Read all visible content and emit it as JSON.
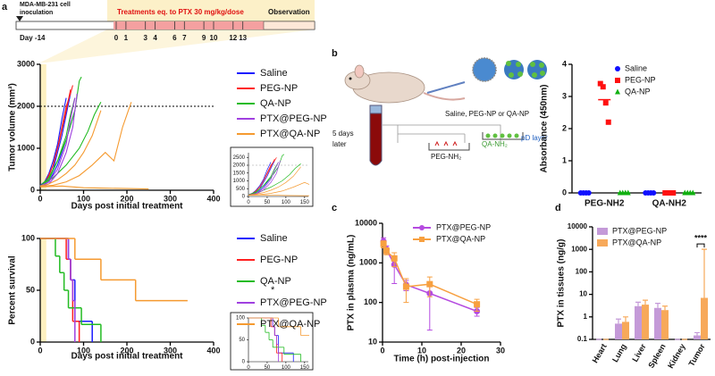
{
  "panel_labels": [
    "a",
    "b",
    "c",
    "d"
  ],
  "timeline": {
    "inoculation": "MDA-MB-231 cell",
    "inoculation_2": "inoculation",
    "treatment": "Treatments eq. to PTX 30 mg/kg/dose",
    "observation": "Observation",
    "start_day": "Day -14",
    "days": [
      0,
      1,
      3,
      4,
      6,
      7,
      9,
      10,
      12,
      13
    ]
  },
  "schematic": {
    "agents": "Saline, PEG-NP or QA-NP",
    "delay_1": "5 days",
    "delay_2": "later",
    "well_1": "PEG-NH₂",
    "well_2": "QA-NH₂",
    "layer": "pD layer"
  },
  "chart_data": [
    {
      "type": "line",
      "xlabel": "Days post initial treatment",
      "ylabel": "Tumor volume (mm³)",
      "legend": "outside right",
      "xlim": [
        0,
        400
      ],
      "ylim": [
        0,
        3000
      ],
      "xticks": [
        0,
        100,
        200,
        300,
        400
      ],
      "yticks": [
        0,
        1000,
        2000,
        3000
      ],
      "reference_line": 2000,
      "treatment_window": [
        0,
        14
      ],
      "series": [
        {
          "name": "Saline",
          "color": "#1a1aff",
          "curves": [
            {
              "x": [
                0,
                10,
                20,
                30,
                40,
                50,
                60,
                70
              ],
              "values": [
                100,
                150,
                300,
                500,
                900,
                1300,
                1800,
                2300
              ]
            },
            {
              "x": [
                0,
                10,
                20,
                30,
                40,
                50,
                60
              ],
              "values": [
                120,
                200,
                400,
                700,
                1100,
                1700,
                2200
              ]
            },
            {
              "x": [
                0,
                20,
                40,
                60,
                80
              ],
              "values": [
                80,
                200,
                600,
                1200,
                1900
              ]
            }
          ]
        },
        {
          "name": "PEG-NP",
          "color": "#ff2020",
          "curves": [
            {
              "x": [
                0,
                10,
                20,
                30,
                40,
                50,
                60,
                70,
                75
              ],
              "values": [
                100,
                180,
                350,
                600,
                1000,
                1500,
                2000,
                2300,
                2500
              ]
            },
            {
              "x": [
                0,
                15,
                30,
                45,
                60,
                70
              ],
              "values": [
                90,
                250,
                600,
                1200,
                1900,
                2400
              ]
            }
          ]
        },
        {
          "name": "QA-NP",
          "color": "#22bb22",
          "curves": [
            {
              "x": [
                0,
                20,
                40,
                60,
                80,
                90,
                95
              ],
              "values": [
                100,
                300,
                700,
                1200,
                1900,
                2600,
                2700
              ]
            },
            {
              "x": [
                0,
                30,
                60,
                90,
                110,
                125,
                140
              ],
              "values": [
                100,
                300,
                600,
                1000,
                1400,
                1800,
                2100
              ]
            },
            {
              "x": [
                0,
                20,
                40,
                60,
                70,
                80
              ],
              "values": [
                100,
                250,
                700,
                1300,
                1800,
                2200
              ]
            }
          ]
        },
        {
          "name": "PTX@PEG-NP",
          "color": "#a040e0",
          "curves": [
            {
              "x": [
                0,
                20,
                40,
                60,
                70,
                80
              ],
              "values": [
                100,
                200,
                500,
                1100,
                1700,
                2200
              ]
            },
            {
              "x": [
                0,
                20,
                40,
                60,
                75,
                85
              ],
              "values": [
                80,
                150,
                400,
                900,
                1500,
                2300
              ]
            }
          ]
        },
        {
          "name": "PTX@QA-NP",
          "color": "#f59a30",
          "curves": [
            {
              "x": [
                0,
                20,
                40,
                60,
                80,
                100,
                120,
                140
              ],
              "values": [
                100,
                150,
                250,
                400,
                600,
                900,
                1300,
                1900
              ]
            },
            {
              "x": [
                0,
                30,
                60,
                90,
                120,
                150,
                170,
                190,
                210
              ],
              "values": [
                90,
                120,
                200,
                350,
                600,
                900,
                700,
                1500,
                2100
              ]
            },
            {
              "x": [
                0,
                50,
                100,
                150,
                200,
                250
              ],
              "values": [
                80,
                100,
                60,
                50,
                40,
                30
              ]
            }
          ]
        }
      ],
      "inset": {
        "xlim": [
          0,
          160
        ],
        "ylim": [
          0,
          2800
        ],
        "xticks": [
          0,
          50,
          100,
          150
        ],
        "yticks": [
          0,
          500,
          1000,
          1500,
          2000,
          2500
        ]
      }
    },
    {
      "type": "step",
      "xlabel": "Days post initial treatment",
      "ylabel": "Percent survival",
      "legend": "outside right",
      "xlim": [
        0,
        400
      ],
      "ylim": [
        0,
        100
      ],
      "xticks": [
        0,
        100,
        200,
        300,
        400
      ],
      "yticks": [
        0,
        50,
        100
      ],
      "treatment_window": [
        0,
        14
      ],
      "annotation": "*",
      "series": [
        {
          "name": "Saline",
          "color": "#1a1aff",
          "x": [
            0,
            65,
            70,
            80,
            120
          ],
          "values": [
            100,
            80,
            60,
            20,
            0
          ]
        },
        {
          "name": "PEG-NP",
          "color": "#ff2020",
          "x": [
            0,
            60,
            70,
            75,
            90
          ],
          "values": [
            100,
            80,
            60,
            20,
            0
          ]
        },
        {
          "name": "QA-NP",
          "color": "#22bb22",
          "x": [
            0,
            35,
            45,
            55,
            65,
            95,
            140
          ],
          "values": [
            100,
            83,
            67,
            50,
            33,
            17,
            0
          ]
        },
        {
          "name": "PTX@PEG-NP",
          "color": "#a040e0",
          "x": [
            0,
            65,
            70,
            75,
            80
          ],
          "values": [
            100,
            80,
            60,
            40,
            0
          ]
        },
        {
          "name": "PTX@QA-NP",
          "color": "#f59a30",
          "x": [
            0,
            80,
            140,
            220,
            340
          ],
          "values": [
            100,
            80,
            60,
            40,
            40
          ]
        }
      ],
      "inset": {
        "xlim": [
          0,
          160
        ],
        "ylim": [
          0,
          100
        ],
        "xticks": [
          0,
          50,
          100,
          150
        ],
        "yticks": [
          0,
          50,
          100
        ]
      }
    },
    {
      "type": "dot",
      "ylabel": "Absorbance (450nm)",
      "legend": "upper right",
      "ylim": [
        0,
        4
      ],
      "yticks": [
        0,
        1,
        2,
        3,
        4
      ],
      "categories": [
        "PEG-NH2",
        "QA-NH2"
      ],
      "series": [
        {
          "name": "Saline",
          "color": "#1010ff",
          "marker": "circle",
          "values": [
            [
              0,
              0,
              0,
              0
            ],
            [
              0,
              0,
              0,
              0
            ]
          ],
          "means": [
            0,
            0
          ]
        },
        {
          "name": "PEG-NP",
          "color": "#ff1010",
          "marker": "square",
          "values": [
            [
              3.4,
              3.3,
              2.8,
              2.2
            ],
            [
              0,
              0,
              0,
              0
            ]
          ],
          "means": [
            2.9,
            0
          ]
        },
        {
          "name": "QA-NP",
          "color": "#10b010",
          "marker": "triangle",
          "values": [
            [
              0,
              0,
              0,
              0
            ],
            [
              0,
              0,
              0,
              0
            ]
          ],
          "means": [
            0,
            0
          ]
        }
      ]
    },
    {
      "type": "line",
      "log": true,
      "xlabel": "Time (h) post-injection",
      "ylabel": "PTX in plasma (ng/mL)",
      "legend": "upper right",
      "x": [
        0.25,
        1,
        3,
        6,
        12,
        24
      ],
      "xlim": [
        0,
        30
      ],
      "ylim": [
        10,
        10000
      ],
      "xticks": [
        0,
        10,
        20,
        30
      ],
      "yticks": [
        10,
        100,
        1000,
        10000
      ],
      "series": [
        {
          "name": "PTX@PEG-NP",
          "color": "#b54be0",
          "marker": "circle",
          "values": [
            3500,
            2200,
            900,
            280,
            170,
            60
          ],
          "errors": [
            800,
            500,
            600,
            80,
            150,
            15
          ]
        },
        {
          "name": "PTX@QA-NP",
          "color": "#f7a040",
          "marker": "square",
          "values": [
            3000,
            2000,
            1300,
            250,
            290,
            90
          ],
          "errors": [
            600,
            400,
            500,
            150,
            150,
            30
          ]
        }
      ]
    },
    {
      "type": "bar",
      "log": true,
      "ylabel": "PTX in tissues (ng/g)",
      "legend": "upper left",
      "annotation": "****",
      "categories": [
        "Heart",
        "Lung",
        "Liver",
        "Spleen",
        "Kidney",
        "Tumor"
      ],
      "ylim": [
        0.1,
        10000
      ],
      "yticks": [
        0.1,
        1,
        10,
        100,
        1000,
        10000
      ],
      "series": [
        {
          "name": "PTX@PEG-NP",
          "color": "#c49ad8",
          "values": [
            0.1,
            0.5,
            3,
            2.5,
            0.1,
            0.15
          ],
          "errors": [
            0,
            0.3,
            1.5,
            1.5,
            0,
            0.05
          ]
        },
        {
          "name": "PTX@QA-NP",
          "color": "#f7a95a",
          "values": [
            0.1,
            0.6,
            3.5,
            2,
            0.1,
            7
          ],
          "errors": [
            0,
            0.4,
            2,
            1,
            0,
            1000
          ]
        }
      ]
    }
  ]
}
